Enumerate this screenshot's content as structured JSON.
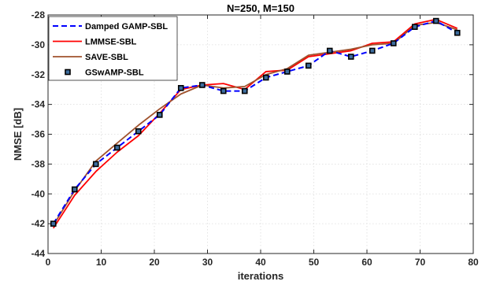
{
  "chart_data": {
    "type": "line",
    "title": "N=250, M=150",
    "xlabel": "iterations",
    "ylabel": "NMSE [dB]",
    "xlim": [
      0,
      80
    ],
    "ylim": [
      -44,
      -28
    ],
    "xticks": [
      0,
      10,
      20,
      30,
      40,
      50,
      60,
      70,
      80
    ],
    "yticks": [
      -44,
      -42,
      -40,
      -38,
      -36,
      -34,
      -32,
      -30,
      -28
    ],
    "grid": true,
    "legend_position": "top-left",
    "series": [
      {
        "name": "Damped GAMP-SBL",
        "color": "#0000ff",
        "style": "dashed",
        "x": [
          1,
          5,
          9,
          13,
          17,
          21,
          25,
          29,
          33,
          37,
          41,
          45,
          49,
          53,
          57,
          61,
          65,
          69,
          73,
          77
        ],
        "y": [
          -42.0,
          -39.7,
          -38.0,
          -36.9,
          -35.8,
          -34.7,
          -32.9,
          -32.7,
          -33.1,
          -33.1,
          -32.2,
          -31.8,
          -31.4,
          -30.4,
          -30.8,
          -30.4,
          -29.9,
          -28.8,
          -28.4,
          -29.2
        ]
      },
      {
        "name": "LMMSE-SBL",
        "color": "#ff0000",
        "style": "solid",
        "x": [
          1,
          5,
          9,
          13,
          17,
          21,
          25,
          29,
          33,
          37,
          41,
          45,
          49,
          53,
          57,
          61,
          65,
          69,
          73,
          77
        ],
        "y": [
          -42.3,
          -40.1,
          -38.5,
          -37.2,
          -36.1,
          -34.6,
          -33.0,
          -32.7,
          -32.6,
          -33.0,
          -31.8,
          -31.7,
          -30.8,
          -30.6,
          -30.4,
          -29.9,
          -29.8,
          -28.6,
          -28.3,
          -28.9
        ]
      },
      {
        "name": "SAVE-SBL",
        "color": "#a0522d",
        "style": "solid",
        "x": [
          1,
          5,
          9,
          13,
          17,
          21,
          25,
          29,
          33,
          37,
          41,
          45,
          49,
          53,
          57,
          61,
          65,
          69,
          73,
          77
        ],
        "y": [
          -42.1,
          -39.8,
          -37.8,
          -36.6,
          -35.4,
          -34.3,
          -33.3,
          -32.7,
          -32.9,
          -32.8,
          -32.0,
          -31.6,
          -30.7,
          -30.5,
          -30.3,
          -30.0,
          -29.9,
          -28.7,
          -28.5,
          -29.0
        ]
      },
      {
        "name": "GSwAMP-SBL",
        "color": "#000000",
        "style": "markers",
        "x": [
          1,
          5,
          9,
          13,
          17,
          21,
          25,
          29,
          33,
          37,
          41,
          45,
          49,
          53,
          57,
          61,
          65,
          69,
          73,
          77
        ],
        "y": [
          -42.0,
          -39.7,
          -38.0,
          -36.9,
          -35.8,
          -34.7,
          -32.9,
          -32.7,
          -33.1,
          -33.1,
          -32.2,
          -31.8,
          -31.4,
          -30.4,
          -30.8,
          -30.4,
          -29.9,
          -28.8,
          -28.4,
          -29.2
        ]
      }
    ]
  }
}
